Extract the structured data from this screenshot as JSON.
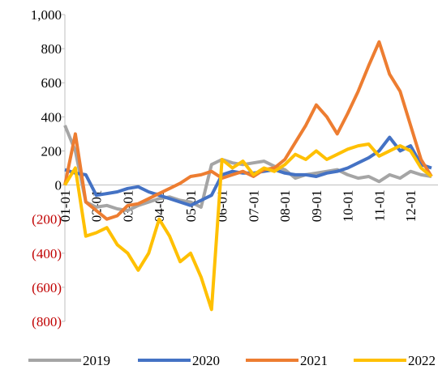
{
  "chart_data": {
    "type": "line",
    "categories": [
      "01-01",
      null,
      null,
      "02-01",
      null,
      null,
      "03-01",
      null,
      null,
      "04-01",
      null,
      null,
      "05-01",
      null,
      null,
      "06-01",
      null,
      null,
      "07-01",
      null,
      null,
      "08-01",
      null,
      null,
      "09-01",
      null,
      null,
      "10-01",
      null,
      null,
      "11-01",
      null,
      null,
      "12-01",
      null,
      null
    ],
    "series": [
      {
        "name": "2019",
        "color": "#a5a5a5",
        "values": [
          350,
          200,
          -100,
          -130,
          -120,
          -140,
          -150,
          -120,
          -100,
          -80,
          -70,
          -90,
          -100,
          -130,
          120,
          150,
          130,
          120,
          130,
          140,
          110,
          90,
          40,
          60,
          70,
          80,
          90,
          60,
          40,
          50,
          20,
          60,
          40,
          80,
          60,
          50
        ]
      },
      {
        "name": "2020",
        "color": "#4472c4",
        "values": [
          90,
          70,
          60,
          -60,
          -50,
          -40,
          -20,
          -10,
          -40,
          -60,
          -80,
          -100,
          -120,
          -90,
          -60,
          60,
          80,
          70,
          70,
          80,
          90,
          70,
          60,
          60,
          50,
          70,
          80,
          100,
          130,
          160,
          200,
          280,
          200,
          230,
          120,
          100
        ]
      },
      {
        "name": "2021",
        "color": "#ed7d31",
        "values": [
          0,
          300,
          -100,
          -150,
          -200,
          -180,
          -120,
          -110,
          -80,
          -50,
          -20,
          10,
          50,
          60,
          80,
          40,
          60,
          80,
          50,
          90,
          100,
          150,
          250,
          350,
          470,
          400,
          300,
          420,
          550,
          700,
          840,
          650,
          550,
          350,
          150,
          50
        ]
      },
      {
        "name": "2022",
        "color": "#ffc000",
        "values": [
          0,
          100,
          -300,
          -280,
          -250,
          -350,
          -400,
          -500,
          -400,
          -200,
          -300,
          -450,
          -400,
          -540,
          -730,
          150,
          100,
          140,
          60,
          100,
          80,
          120,
          180,
          150,
          200,
          150,
          180,
          210,
          230,
          240,
          170,
          200,
          230,
          200,
          100,
          50
        ]
      }
    ],
    "ylim": [
      -800,
      1000
    ],
    "yticks": [
      {
        "value": -800,
        "label": "(800)"
      },
      {
        "value": -600,
        "label": "(600)"
      },
      {
        "value": -400,
        "label": "(400)"
      },
      {
        "value": -200,
        "label": "(200)"
      },
      0,
      200,
      400,
      600,
      800,
      {
        "value": 1000,
        "label": "1,000"
      }
    ],
    "negative_tick_color": "#c00000",
    "axis_color": "#bfbfbf"
  }
}
